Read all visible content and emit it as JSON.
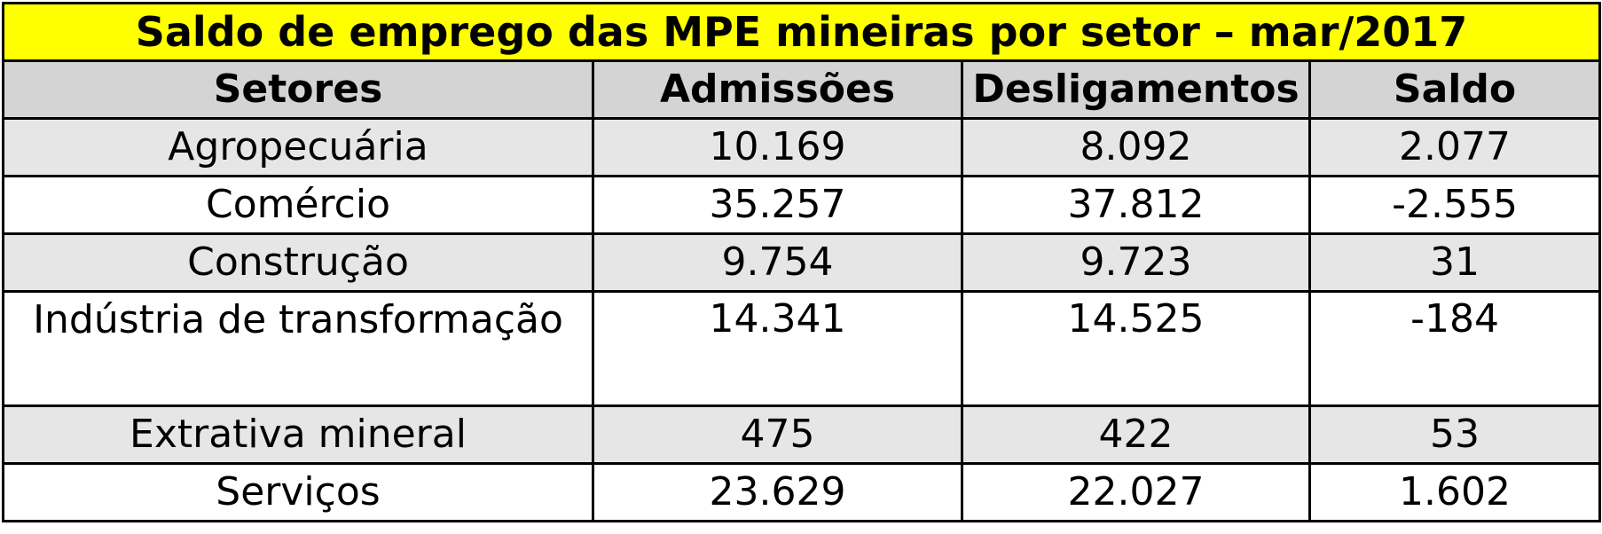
{
  "title": "Saldo de emprego das MPE mineiras por setor – mar/2017",
  "columns": [
    "Setores",
    "Admissões",
    "Desligamentos",
    "Saldo"
  ],
  "rows": [
    {
      "setor": "Agropecuária",
      "admissoes": "10.169",
      "desligamentos": "8.092",
      "saldo": "2.077"
    },
    {
      "setor": "Comércio",
      "admissoes": "35.257",
      "desligamentos": "37.812",
      "saldo": "-2.555"
    },
    {
      "setor": "Construção",
      "admissoes": "9.754",
      "desligamentos": "9.723",
      "saldo": "31"
    },
    {
      "setor": "Indústria de transformação",
      "admissoes": "14.341",
      "desligamentos": "14.525",
      "saldo": "-184"
    },
    {
      "setor": "Extrativa mineral",
      "admissoes": "475",
      "desligamentos": "422",
      "saldo": "53"
    },
    {
      "setor": "Serviços",
      "admissoes": "23.629",
      "desligamentos": "22.027",
      "saldo": "1.602"
    }
  ],
  "colors": {
    "title_background": "#ffff00",
    "header_background": "#d4d4d4",
    "shaded_row_background": "#e6e6e6",
    "border": "#000000"
  }
}
